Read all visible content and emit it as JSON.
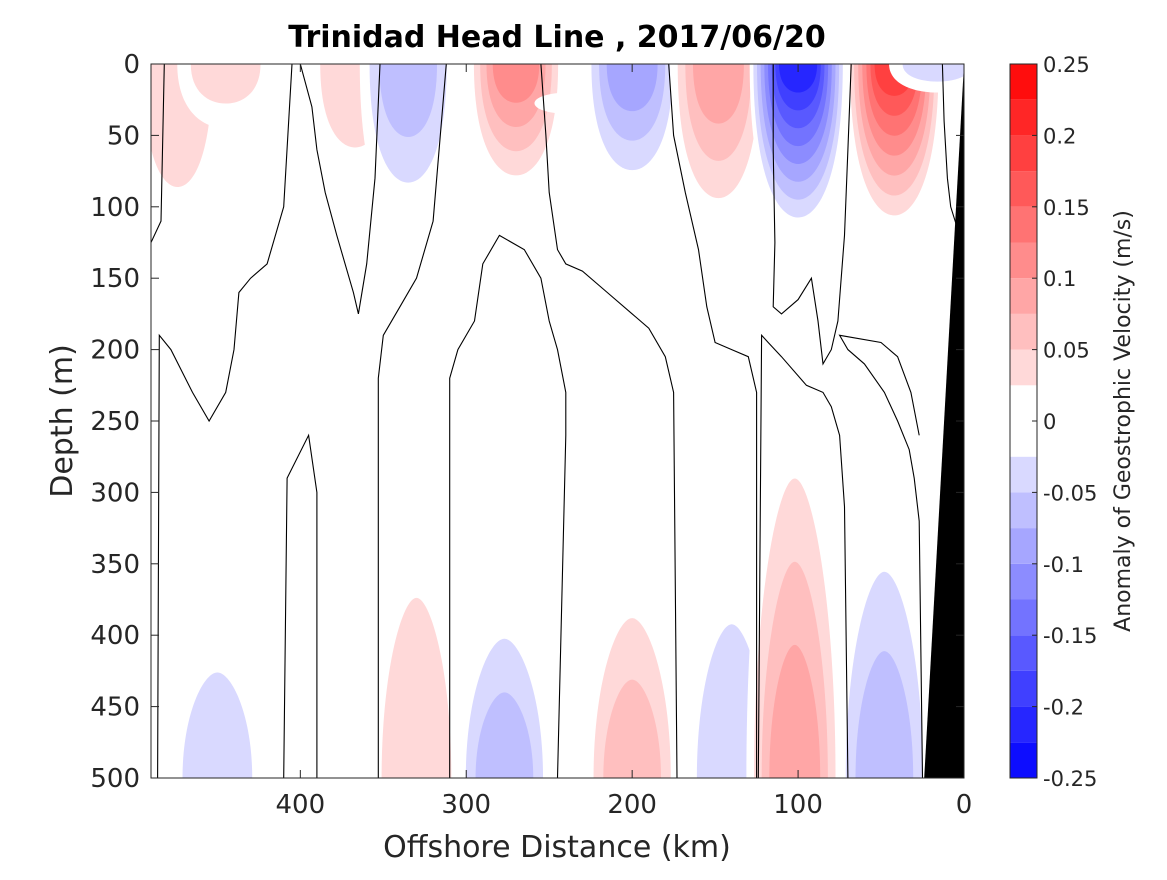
{
  "chart_data": {
    "type": "heatmap",
    "title": "Trinidad Head Line , 2017/06/20",
    "xlabel": "Offshore Distance (km)",
    "ylabel": "Depth (m)",
    "xlim": [
      490,
      0
    ],
    "ylim": [
      0,
      500
    ],
    "x_reversed": true,
    "y_reversed": true,
    "x_ticks": [
      400,
      300,
      200,
      100,
      0
    ],
    "y_ticks": [
      0,
      50,
      100,
      150,
      200,
      250,
      300,
      350,
      400,
      450,
      500
    ],
    "colorbar": {
      "label": "Anomaly of Geostrophic Velocity (m/s)",
      "range": [
        -0.25,
        0.25
      ],
      "levels": [
        -0.25,
        -0.225,
        -0.2,
        -0.175,
        -0.15,
        -0.125,
        -0.1,
        -0.075,
        -0.05,
        -0.025,
        0,
        0.025,
        0.05,
        0.075,
        0.1,
        0.125,
        0.15,
        0.175,
        0.2,
        0.225,
        0.25
      ],
      "tick_values": [
        0.25,
        0.2,
        0.15,
        0.1,
        0.05,
        0,
        -0.05,
        -0.1,
        -0.15,
        -0.2,
        -0.25
      ],
      "tick_labels": [
        "0.25",
        "0.2",
        "0.15",
        "0.1",
        "0.05",
        "0",
        "-0.05",
        "-0.1",
        "-0.15",
        "-0.2",
        "-0.25"
      ],
      "negative_color": "#0000ff",
      "positive_color": "#ff0000",
      "zero_color": "#ffffff"
    },
    "cells": [
      {
        "x": 474,
        "depth_top": 0,
        "depth_bottom": 140,
        "value": 0.04
      },
      {
        "x": 445,
        "depth_top": 0,
        "depth_bottom": 45,
        "value": 0.06
      },
      {
        "x": 367,
        "depth_top": 0,
        "depth_bottom": 95,
        "value": 0.05
      },
      {
        "x": 335,
        "depth_top": 0,
        "depth_bottom": 115,
        "value": -0.08
      },
      {
        "x": 270,
        "depth_top": 0,
        "depth_bottom": 95,
        "value": 0.13
      },
      {
        "x": 237,
        "depth_top": 20,
        "depth_bottom": 35,
        "value": -0.02
      },
      {
        "x": 200,
        "depth_top": 0,
        "depth_bottom": 95,
        "value": -0.09
      },
      {
        "x": 148,
        "depth_top": 0,
        "depth_bottom": 120,
        "value": 0.09
      },
      {
        "x": 100,
        "depth_top": 0,
        "depth_bottom": 120,
        "value": -0.22
      },
      {
        "x": 42,
        "depth_top": 0,
        "depth_bottom": 120,
        "value": 0.2
      },
      {
        "x": 16,
        "depth_top": 0,
        "depth_bottom": 20,
        "value": -0.05
      },
      {
        "x": 450,
        "depth_top": 380,
        "depth_bottom": 500,
        "value": -0.04
      },
      {
        "x": 367,
        "depth_top": 470,
        "depth_bottom": 500,
        "value": -0.03
      },
      {
        "x": 330,
        "depth_top": 295,
        "depth_bottom": 500,
        "value": 0.05
      },
      {
        "x": 277,
        "depth_top": 365,
        "depth_bottom": 500,
        "value": -0.07
      },
      {
        "x": 200,
        "depth_top": 345,
        "depth_bottom": 500,
        "value": 0.07
      },
      {
        "x": 140,
        "depth_top": 325,
        "depth_bottom": 500,
        "value": -0.04
      },
      {
        "x": 102,
        "depth_top": 232,
        "depth_bottom": 500,
        "value": 0.09
      },
      {
        "x": 48,
        "depth_top": 300,
        "depth_bottom": 500,
        "value": -0.07
      }
    ],
    "zero_contours": [
      [
        [
          490,
          125
        ],
        [
          484,
          110
        ],
        [
          482,
          0
        ]
      ],
      [
        [
          486,
          500
        ],
        [
          485,
          190
        ],
        [
          478,
          200
        ],
        [
          465,
          230
        ],
        [
          455,
          250
        ],
        [
          445,
          230
        ],
        [
          440,
          200
        ],
        [
          437,
          160
        ],
        [
          430,
          150
        ],
        [
          420,
          140
        ],
        [
          410,
          100
        ],
        [
          405,
          0
        ]
      ],
      [
        [
          400,
          0
        ],
        [
          393,
          30
        ],
        [
          390,
          60
        ],
        [
          385,
          90
        ],
        [
          378,
          120
        ],
        [
          368,
          160
        ],
        [
          365,
          175
        ],
        [
          360,
          140
        ],
        [
          355,
          80
        ],
        [
          352,
          0
        ]
      ],
      [
        [
          410,
          500
        ],
        [
          408,
          290
        ],
        [
          395,
          260
        ],
        [
          390,
          300
        ],
        [
          390,
          500
        ]
      ],
      [
        [
          353,
          500
        ],
        [
          353,
          220
        ],
        [
          350,
          190
        ],
        [
          340,
          170
        ],
        [
          330,
          150
        ],
        [
          320,
          110
        ],
        [
          312,
          0
        ]
      ],
      [
        [
          310,
          500
        ],
        [
          310,
          220
        ],
        [
          305,
          200
        ],
        [
          295,
          180
        ],
        [
          290,
          140
        ],
        [
          280,
          120
        ],
        [
          265,
          130
        ],
        [
          255,
          150
        ],
        [
          250,
          180
        ],
        [
          245,
          200
        ],
        [
          240,
          230
        ],
        [
          240,
          260
        ],
        [
          245,
          500
        ]
      ],
      [
        [
          255,
          0
        ],
        [
          252,
          50
        ],
        [
          250,
          90
        ],
        [
          245,
          130
        ],
        [
          240,
          140
        ],
        [
          230,
          145
        ],
        [
          215,
          160
        ],
        [
          200,
          175
        ],
        [
          190,
          185
        ],
        [
          180,
          205
        ],
        [
          175,
          230
        ],
        [
          173,
          500
        ]
      ],
      [
        [
          178,
          0
        ],
        [
          175,
          50
        ],
        [
          168,
          90
        ],
        [
          160,
          130
        ],
        [
          155,
          170
        ],
        [
          150,
          195
        ],
        [
          140,
          200
        ],
        [
          130,
          205
        ],
        [
          125,
          230
        ],
        [
          125,
          500
        ]
      ],
      [
        [
          115,
          0
        ],
        [
          115,
          60
        ],
        [
          114,
          125
        ],
        [
          115,
          170
        ],
        [
          110,
          175
        ],
        [
          100,
          165
        ],
        [
          92,
          150
        ],
        [
          88,
          180
        ],
        [
          85,
          210
        ],
        [
          80,
          200
        ],
        [
          76,
          180
        ],
        [
          72,
          120
        ],
        [
          70,
          60
        ],
        [
          68,
          0
        ]
      ],
      [
        [
          70,
          500
        ],
        [
          72,
          310
        ],
        [
          75,
          260
        ],
        [
          80,
          240
        ],
        [
          85,
          230
        ],
        [
          95,
          225
        ],
        [
          110,
          205
        ],
        [
          118,
          195
        ],
        [
          122,
          190
        ],
        [
          124,
          500
        ]
      ],
      [
        [
          25,
          500
        ],
        [
          27,
          320
        ],
        [
          30,
          290
        ],
        [
          33,
          270
        ],
        [
          40,
          250
        ],
        [
          48,
          230
        ],
        [
          60,
          210
        ],
        [
          70,
          200
        ],
        [
          75,
          190
        ],
        [
          50,
          195
        ],
        [
          40,
          205
        ],
        [
          32,
          230
        ],
        [
          27,
          260
        ]
      ],
      [
        [
          13,
          0
        ],
        [
          12,
          40
        ],
        [
          10,
          80
        ],
        [
          8,
          100
        ],
        [
          0,
          130
        ]
      ]
    ],
    "land_mask_color": "#000000",
    "land_mask": [
      [
        0,
        0
      ],
      [
        24,
        500
      ],
      [
        0,
        500
      ]
    ]
  }
}
